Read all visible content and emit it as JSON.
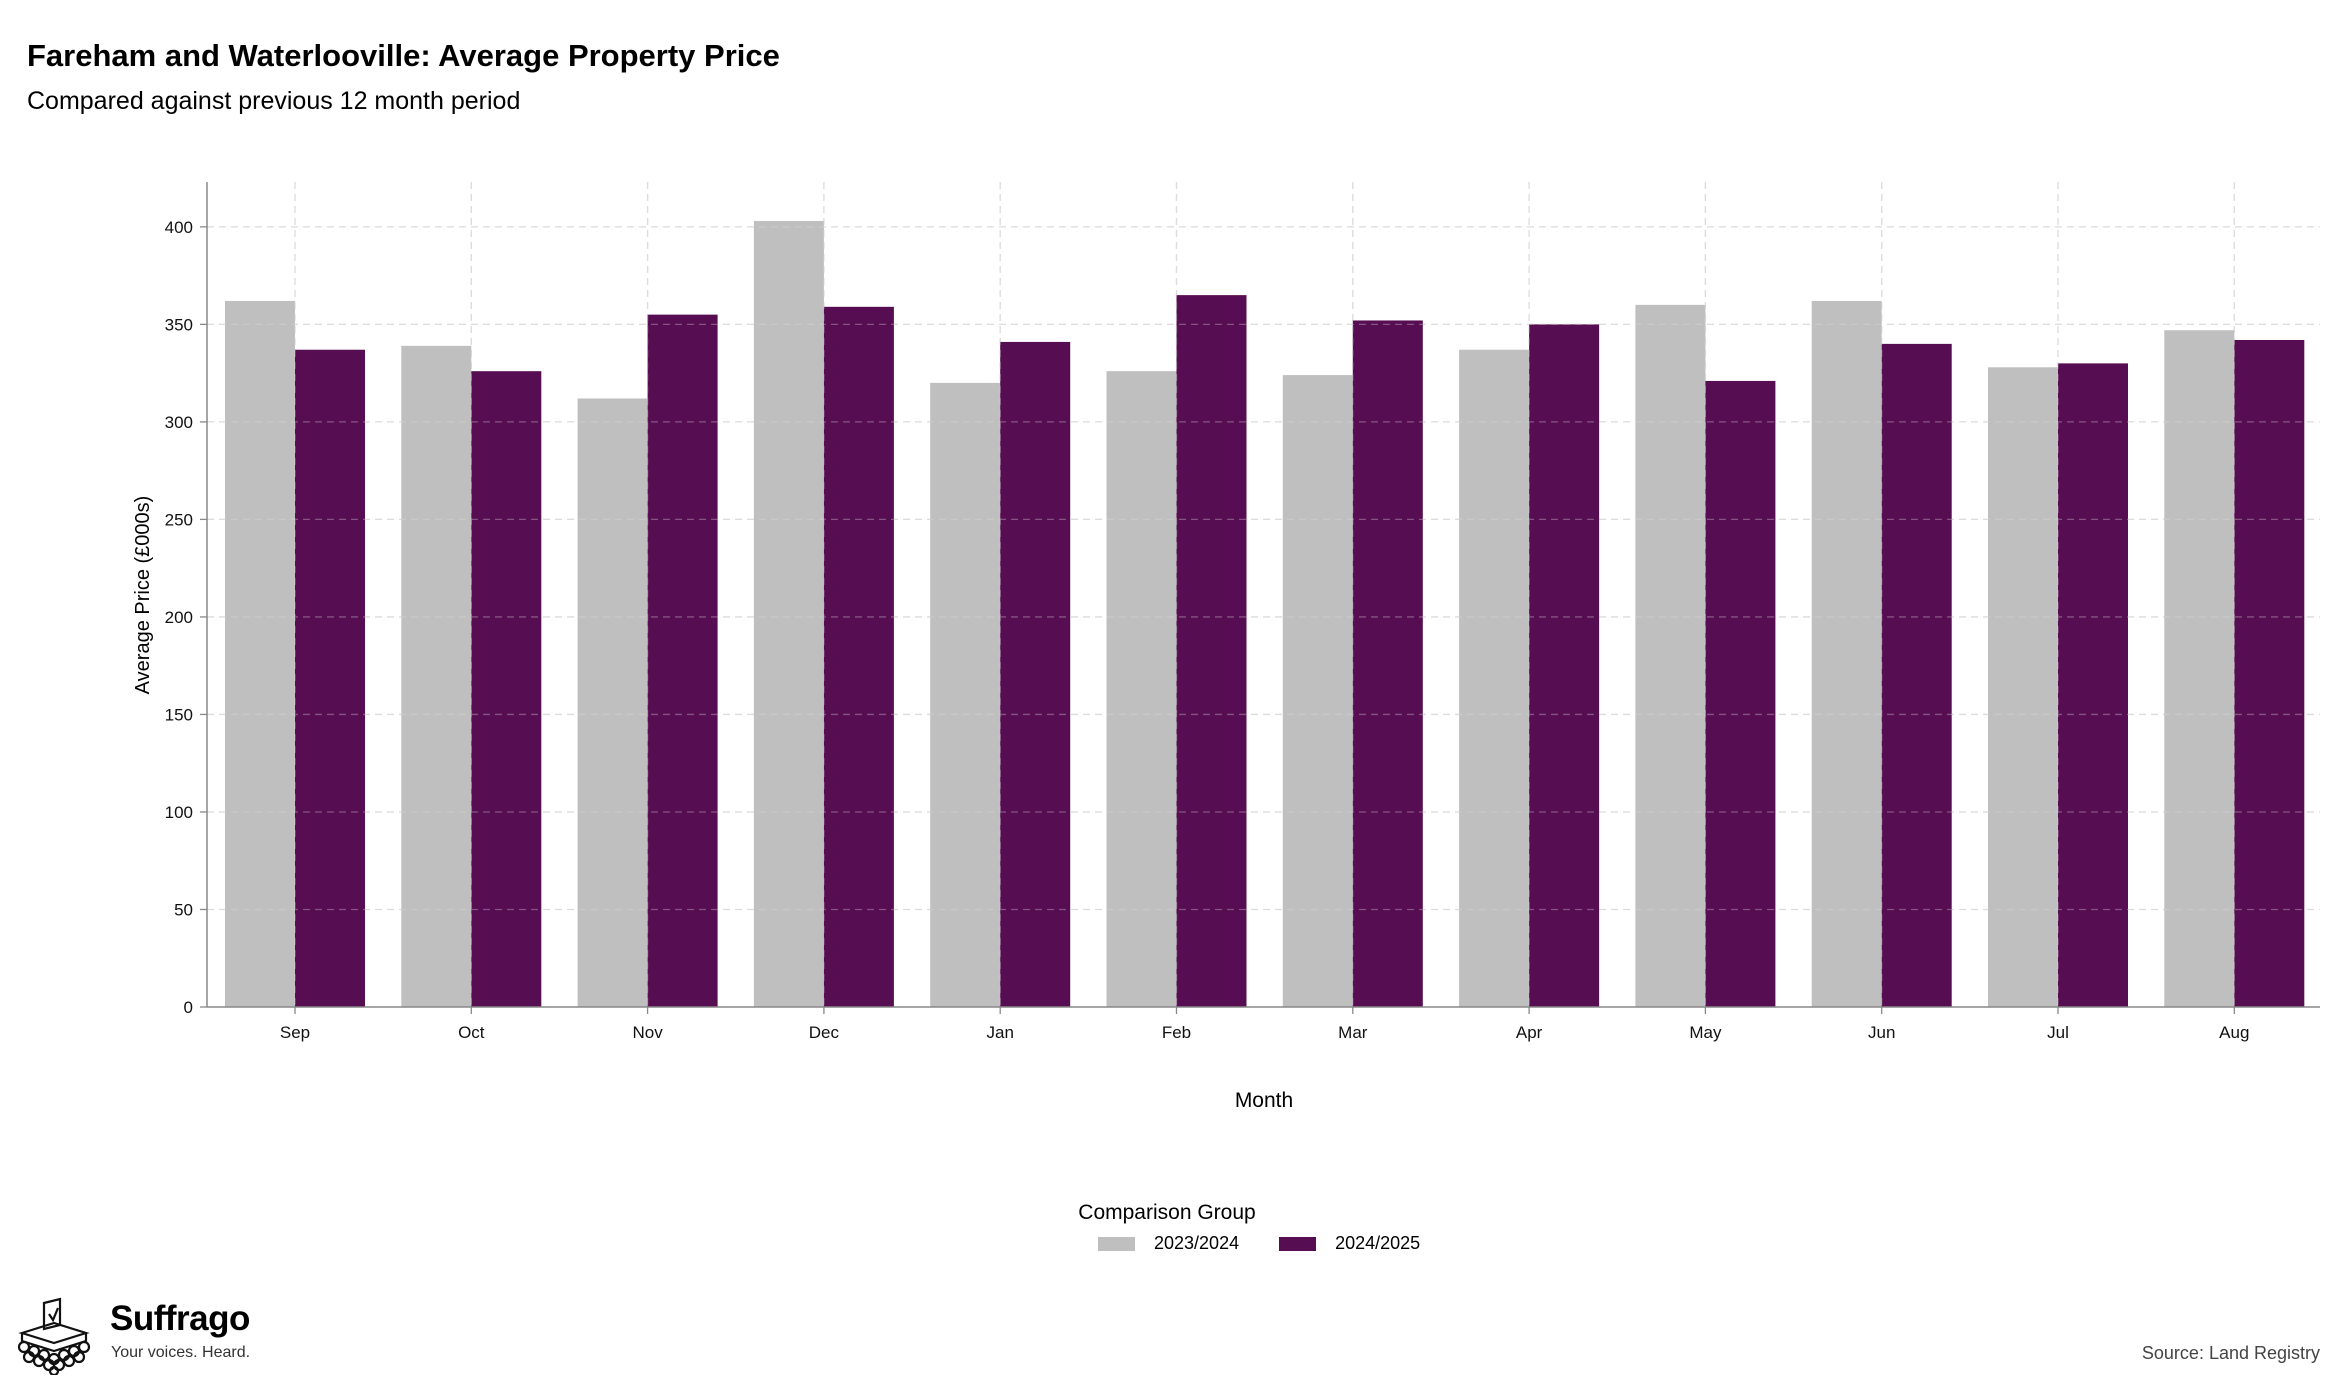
{
  "chart_data": {
    "type": "bar",
    "title": "Fareham and Waterlooville: Average Property Price",
    "subtitle": "Compared against previous 12 month period",
    "xlabel": "Month",
    "ylabel": "Average Price (£000s)",
    "ylim": [
      0,
      423
    ],
    "yticks": [
      0,
      50,
      100,
      150,
      200,
      250,
      300,
      350,
      400
    ],
    "categories": [
      "Sep",
      "Oct",
      "Nov",
      "Dec",
      "Jan",
      "Feb",
      "Mar",
      "Apr",
      "May",
      "Jun",
      "Jul",
      "Aug"
    ],
    "series": [
      {
        "name": "2023/2024",
        "color": "#bfbfbf",
        "values": [
          362,
          339,
          312,
          403,
          320,
          326,
          324,
          337,
          360,
          362,
          328,
          347
        ]
      },
      {
        "name": "2024/2025",
        "color": "#560d52",
        "values": [
          337,
          326,
          355,
          359,
          341,
          365,
          352,
          350,
          321,
          340,
          330,
          342
        ]
      }
    ],
    "grid": true,
    "legend_title": "Comparison Group",
    "legend_position": "bottom-center"
  },
  "branding": {
    "logo_name": "Suffrago",
    "logo_tagline": "Your voices. Heard.",
    "logo_icon": "ballot-box-icon"
  },
  "source": "Source: Land Registry"
}
